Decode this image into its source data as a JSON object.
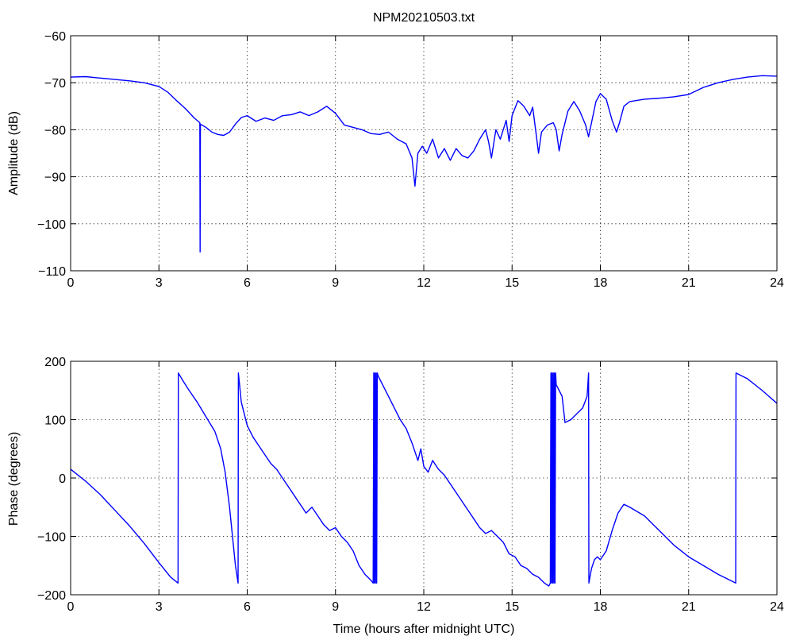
{
  "chart_data": [
    {
      "id": "amplitude",
      "type": "line",
      "title": "NPM20210503.txt",
      "xlabel": "",
      "ylabel": "Amplitude (dB)",
      "xlim": [
        0,
        24
      ],
      "ylim": [
        -110,
        -60
      ],
      "xticks": [
        0,
        3,
        6,
        9,
        12,
        15,
        18,
        21,
        24
      ],
      "yticks": [
        -110,
        -100,
        -90,
        -80,
        -70,
        -60
      ],
      "grid": true,
      "color": "#0000ff",
      "series": [
        {
          "x": [
            0,
            0.5,
            1,
            1.5,
            2,
            2.5,
            3,
            3.3,
            3.6,
            3.9,
            4.2,
            4.39,
            4.4,
            4.41,
            4.6,
            4.8,
            5.0,
            5.2,
            5.4,
            5.6,
            5.8,
            6.0,
            6.3,
            6.6,
            6.9,
            7.2,
            7.5,
            7.8,
            8.1,
            8.4,
            8.7,
            9.0,
            9.3,
            9.6,
            9.9,
            10.2,
            10.5,
            10.8,
            11.1,
            11.4,
            11.6,
            11.7,
            11.8,
            11.95,
            12.1,
            12.3,
            12.5,
            12.7,
            12.9,
            13.1,
            13.3,
            13.5,
            13.7,
            13.9,
            14.1,
            14.2,
            14.3,
            14.45,
            14.6,
            14.8,
            14.9,
            15.0,
            15.2,
            15.4,
            15.6,
            15.7,
            15.8,
            15.9,
            16.0,
            16.2,
            16.4,
            16.5,
            16.6,
            16.7,
            16.9,
            17.1,
            17.3,
            17.5,
            17.6,
            17.7,
            17.85,
            18.0,
            18.2,
            18.4,
            18.55,
            18.65,
            18.8,
            19.0,
            19.5,
            20.0,
            20.5,
            21.0,
            21.5,
            22.0,
            22.5,
            23.0,
            23.5,
            24.0
          ],
          "y": [
            -68.8,
            -68.7,
            -69.0,
            -69.3,
            -69.6,
            -70.0,
            -70.8,
            -72.0,
            -73.8,
            -75.5,
            -77.5,
            -78.5,
            -106.0,
            -78.8,
            -79.5,
            -80.5,
            -81.0,
            -81.2,
            -80.5,
            -78.8,
            -77.4,
            -77.0,
            -78.2,
            -77.5,
            -78.0,
            -77.0,
            -76.8,
            -76.2,
            -77.0,
            -76.2,
            -75.0,
            -76.5,
            -79.0,
            -79.5,
            -80.0,
            -80.8,
            -81.0,
            -80.5,
            -82.0,
            -83.0,
            -86.0,
            -92.0,
            -85.0,
            -83.5,
            -85.0,
            -82.0,
            -86.0,
            -84.0,
            -86.5,
            -84.0,
            -85.5,
            -86.0,
            -84.5,
            -82.0,
            -80.0,
            -82.5,
            -86.0,
            -80.0,
            -82.0,
            -78.0,
            -82.5,
            -77.0,
            -73.8,
            -75.0,
            -77.0,
            -75.2,
            -80.0,
            -85.0,
            -80.5,
            -79.0,
            -78.5,
            -80.0,
            -84.5,
            -81.0,
            -76.0,
            -74.0,
            -76.0,
            -79.0,
            -81.5,
            -78.5,
            -74.0,
            -72.3,
            -73.5,
            -78.0,
            -80.5,
            -78.5,
            -75.0,
            -74.0,
            -73.5,
            -73.3,
            -73.0,
            -72.5,
            -71.0,
            -70.0,
            -69.3,
            -68.8,
            -68.5,
            -68.6
          ]
        }
      ]
    },
    {
      "id": "phase",
      "type": "line",
      "title": "",
      "xlabel": "Time (hours after midnight UTC)",
      "ylabel": "Phase (degrees)",
      "xlim": [
        0,
        24
      ],
      "ylim": [
        -200,
        200
      ],
      "xticks": [
        0,
        3,
        6,
        9,
        12,
        15,
        18,
        21,
        24
      ],
      "yticks": [
        -200,
        -100,
        0,
        100,
        200
      ],
      "grid": true,
      "color": "#0000ff",
      "series": [
        {
          "x": [
            0,
            0.5,
            1.0,
            1.5,
            2.0,
            2.5,
            3.0,
            3.4,
            3.65,
            3.66,
            3.8,
            4.0,
            4.3,
            4.6,
            4.9,
            5.1,
            5.25,
            5.4,
            5.5,
            5.6,
            5.69,
            5.7,
            5.8,
            5.9,
            6.0,
            6.2,
            6.4,
            6.6,
            6.8,
            7.0,
            7.2,
            7.4,
            7.6,
            7.8,
            8.0,
            8.2,
            8.4,
            8.6,
            8.8,
            9.0,
            9.2,
            9.4,
            9.6,
            9.8,
            10.0,
            10.2,
            10.28,
            10.3,
            10.32,
            10.34,
            10.36,
            10.38,
            10.4,
            10.42,
            10.45,
            10.6,
            10.8,
            11.0,
            11.2,
            11.4,
            11.6,
            11.8,
            11.9,
            12.0,
            12.15,
            12.3,
            12.5,
            12.7,
            12.9,
            13.1,
            13.3,
            13.5,
            13.7,
            13.9,
            14.1,
            14.3,
            14.5,
            14.7,
            14.9,
            15.1,
            15.3,
            15.5,
            15.7,
            15.9,
            16.1,
            16.25,
            16.3,
            16.32,
            16.34,
            16.36,
            16.38,
            16.4,
            16.42,
            16.44,
            16.46,
            16.48,
            16.5,
            16.6,
            16.7,
            16.8,
            17.0,
            17.2,
            17.4,
            17.55,
            17.6,
            17.61,
            17.7,
            17.8,
            17.9,
            18.0,
            18.2,
            18.4,
            18.6,
            18.8,
            19.0,
            19.5,
            20.0,
            20.5,
            21.0,
            21.5,
            22.0,
            22.6,
            22.61,
            23.0,
            23.5,
            24.0
          ],
          "y": [
            15,
            -5,
            -28,
            -55,
            -82,
            -112,
            -145,
            -170,
            -180,
            180,
            168,
            152,
            130,
            105,
            80,
            50,
            10,
            -50,
            -100,
            -150,
            -180,
            180,
            130,
            110,
            90,
            70,
            55,
            40,
            25,
            15,
            0,
            -15,
            -30,
            -45,
            -60,
            -50,
            -65,
            -80,
            -90,
            -85,
            -100,
            -110,
            -125,
            -150,
            -165,
            -175,
            -180,
            180,
            -180,
            180,
            -180,
            180,
            -180,
            180,
            175,
            160,
            140,
            120,
            100,
            85,
            60,
            30,
            50,
            20,
            10,
            30,
            15,
            5,
            -10,
            -25,
            -40,
            -55,
            -70,
            -85,
            -95,
            -90,
            -100,
            -110,
            -130,
            -135,
            -150,
            -155,
            -165,
            -170,
            -180,
            -185,
            -180,
            180,
            -180,
            180,
            -180,
            180,
            -180,
            180,
            -180,
            180,
            160,
            150,
            140,
            95,
            100,
            110,
            120,
            140,
            180,
            -180,
            -155,
            -140,
            -135,
            -140,
            -125,
            -90,
            -60,
            -45,
            -50,
            -65,
            -90,
            -115,
            -135,
            -150,
            -165,
            -180,
            180,
            170,
            150,
            128
          ]
        }
      ]
    }
  ]
}
